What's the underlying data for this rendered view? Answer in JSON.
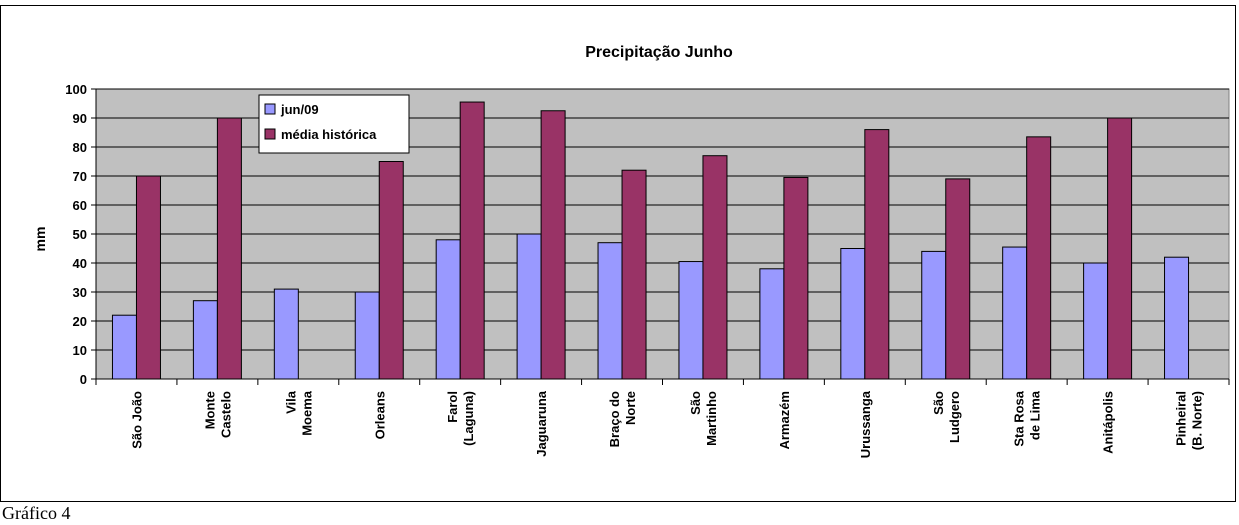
{
  "caption": "Gráfico 4",
  "chart_data": {
    "type": "bar",
    "title": "Precipitação Junho",
    "ylabel": "mm",
    "xlabel": "",
    "ylim": [
      0,
      100
    ],
    "yticks": [
      0,
      10,
      20,
      30,
      40,
      50,
      60,
      70,
      80,
      90,
      100
    ],
    "grid": true,
    "legend_position": "top-left",
    "categories": [
      [
        "São João"
      ],
      [
        "Monte",
        "Castelo"
      ],
      [
        "Vila",
        "Moema"
      ],
      [
        "Orleans"
      ],
      [
        "Farol",
        "(Laguna)"
      ],
      [
        "Jaguaruna"
      ],
      [
        "Braço do",
        "Norte"
      ],
      [
        "São",
        "Martinho"
      ],
      [
        "Armazém"
      ],
      [
        "Urussanga"
      ],
      [
        "São",
        "Ludgero"
      ],
      [
        "Sta Rosa",
        "de Lima"
      ],
      [
        "Anitápolis"
      ],
      [
        "Pinheiral",
        "(B. Norte)"
      ]
    ],
    "series": [
      {
        "name": "jun/09",
        "color": "#9999ff",
        "values": [
          22,
          27,
          31,
          30,
          48,
          50,
          47,
          40.5,
          38,
          45,
          44,
          45.5,
          40,
          42
        ]
      },
      {
        "name": "média histórica",
        "color": "#993366",
        "values": [
          70,
          90,
          null,
          75,
          95.5,
          92.5,
          72,
          77,
          69.5,
          86,
          69,
          83.5,
          90,
          null
        ]
      }
    ],
    "plot_background": "#c0c0c0"
  }
}
